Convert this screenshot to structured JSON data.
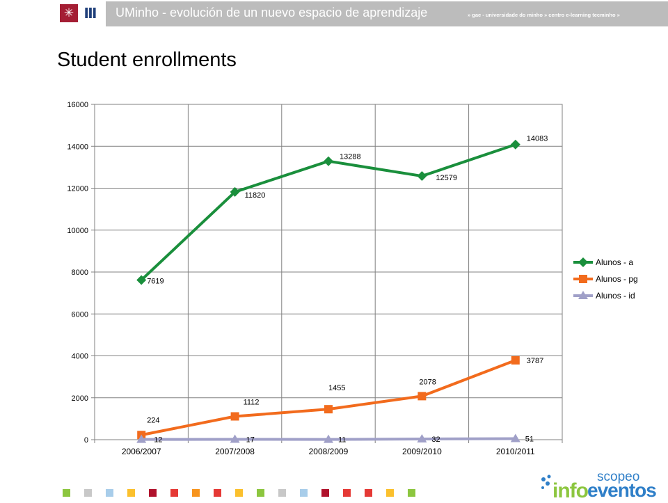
{
  "header": {
    "title": "UMinho - evolución de un nuevo espacio de aprendizaje",
    "subtitle": "» gae - universidade do minho » centro e-learning tecminho »",
    "logo_left_glyph": "✳",
    "logo_right_glyph": "Ⅲ",
    "band_color": "#bcbcbc"
  },
  "page": {
    "title": "Student enrollments"
  },
  "chart_data": {
    "type": "line",
    "categories": [
      "2006/2007",
      "2007/2008",
      "2008/2009",
      "2009/2010",
      "2010/2011"
    ],
    "ylim": [
      0,
      16000
    ],
    "yticks": [
      0,
      2000,
      4000,
      6000,
      8000,
      10000,
      12000,
      14000,
      16000
    ],
    "xlabel": "",
    "ylabel": "",
    "grid": true,
    "legend_position": "right",
    "series": [
      {
        "name": "Alunos - a",
        "values": [
          7619,
          11820,
          13288,
          12579,
          14083
        ],
        "color": "#1a8f3c",
        "marker": "diamond"
      },
      {
        "name": "Alunos - pg",
        "values": [
          224,
          1112,
          1455,
          2078,
          3787
        ],
        "color": "#f26b1d",
        "marker": "square"
      },
      {
        "name": "Alunos - id",
        "values": [
          12,
          17,
          11,
          32,
          51
        ],
        "color": "#a0a0c8",
        "marker": "triangle"
      }
    ]
  },
  "footer": {
    "square_colors": [
      "#8cc63f",
      "#c8c8c8",
      "#a8cdea",
      "#fbc02d",
      "#b0122c",
      "#e53935",
      "#f7941d",
      "#e53935",
      "#fbc02d",
      "#8cc63f",
      "#c8c8c8",
      "#a8cdea",
      "#b0122c",
      "#e53935",
      "#e53935",
      "#fbc02d",
      "#8cc63f"
    ],
    "brand_top": "scopeo",
    "brand_left": "info",
    "brand_right": "eventos"
  }
}
